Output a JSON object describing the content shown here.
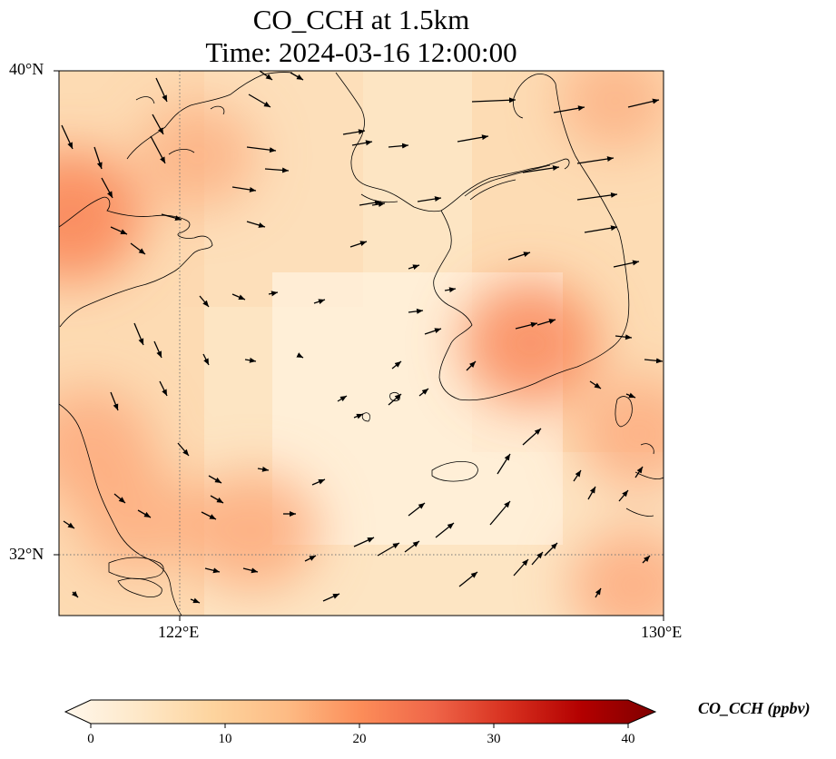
{
  "title_line1": "CO_CCH at 1.5km",
  "title_line2": "Time: 2024-03-16 12:00:00",
  "axes": {
    "lat_ticks": [
      "40°N",
      "32°N"
    ],
    "lon_ticks": [
      "122°E",
      "130°E"
    ],
    "lon_range": [
      120,
      130
    ],
    "lat_range": [
      31,
      40
    ]
  },
  "colorbar": {
    "label": "CO_CCH (ppbv)",
    "ticks": [
      "0",
      "10",
      "20",
      "30",
      "40"
    ],
    "range": [
      0,
      40
    ],
    "colormap": "OrRd",
    "colors": [
      "#fff7ec",
      "#fee8c8",
      "#fdd49e",
      "#fdbb84",
      "#fc8d59",
      "#ef6548",
      "#d7301f",
      "#b30000",
      "#7f0000"
    ]
  },
  "chart_data": {
    "type": "heatmap",
    "variable": "CO_CCH",
    "level": "1.5km",
    "units": "ppbv",
    "time": "2024-03-16 12:00:00",
    "xlim": [
      120,
      130
    ],
    "ylim": [
      31,
      40
    ],
    "value_range": [
      0,
      40
    ],
    "hotspots": [
      {
        "lon": 120.2,
        "lat": 37.6,
        "value": 18
      },
      {
        "lon": 127.8,
        "lat": 35.5,
        "value": 16
      },
      {
        "lon": 120.5,
        "lat": 33.8,
        "value": 14
      },
      {
        "lon": 121.3,
        "lat": 32.6,
        "value": 12
      },
      {
        "lon": 123.2,
        "lat": 32.4,
        "value": 15
      },
      {
        "lon": 129.5,
        "lat": 31.5,
        "value": 14
      },
      {
        "lon": 129.6,
        "lat": 34.0,
        "value": 13
      },
      {
        "lon": 129.2,
        "lat": 39.5,
        "value": 10
      },
      {
        "lon": 122.3,
        "lat": 38.6,
        "value": 11
      }
    ],
    "background_value": 4,
    "gridlines": {
      "lon": [
        122
      ],
      "lat": [
        32
      ]
    },
    "wind_vectors": "present (black arrows)"
  }
}
